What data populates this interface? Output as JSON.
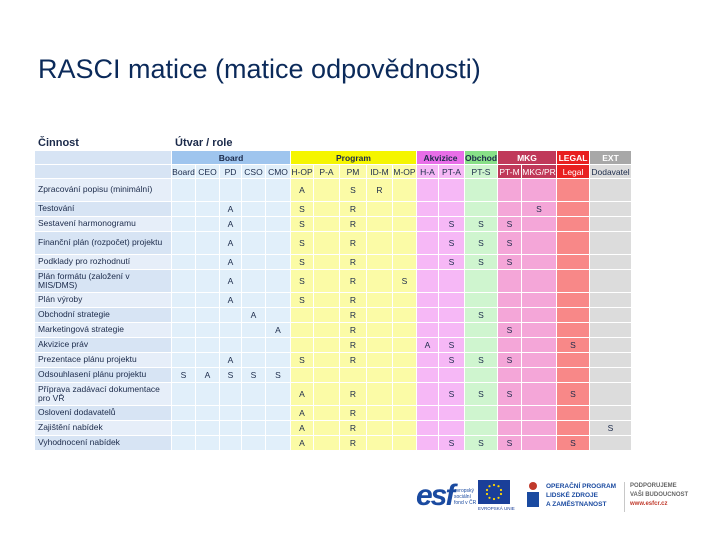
{
  "title": "RASCI matice (matice odpovědnosti)",
  "header": {
    "activity": "Činnost",
    "role": "Útvar / role"
  },
  "colors": {
    "board": "#9fc5ee",
    "boardLight": "#e1effa",
    "program": "#f5f500",
    "programLight": "#fbfba6",
    "akvizice": "#e86ee8",
    "akviziceLight": "#f6b8f6",
    "obchod": "#88e088",
    "obchodLight": "#cff5cf",
    "mkg": "#c0395a",
    "mkgLight": "#f4a6d8",
    "legal": "#e82020",
    "legalLight": "#f88888",
    "ext": "#a8a8a8",
    "extLight": "#dcdcdc",
    "rowA": "#e6eef9",
    "rowB": "#d7e4f4"
  },
  "groups": [
    {
      "label": "Board",
      "span": 5,
      "key": "board"
    },
    {
      "label": "Program",
      "span": 5,
      "key": "program"
    },
    {
      "label": "Akvizice",
      "span": 2,
      "key": "akvizice"
    },
    {
      "label": "Obchod",
      "span": 1,
      "key": "obchod"
    },
    {
      "label": "MKG",
      "span": 2,
      "key": "mkg"
    },
    {
      "label": "LEGAL",
      "span": 1,
      "key": "legal"
    },
    {
      "label": "EXT",
      "span": 1,
      "key": "ext"
    }
  ],
  "columns": [
    "Board",
    "CEO",
    "PD",
    "CSO",
    "CMO",
    "H-OP",
    "P-A",
    "PM",
    "ID-M",
    "M-OP",
    "H-A",
    "PT-A",
    "PT-S",
    "PT-M",
    "MKG/PR",
    "Legal",
    "Dodavatel"
  ],
  "rows": [
    {
      "activity": "Zpracování popisu (minimální)",
      "values": [
        "",
        "",
        "",
        "",
        "",
        "A",
        "",
        "S",
        "R",
        "",
        "",
        "",
        "",
        "",
        "",
        "",
        ""
      ]
    },
    {
      "activity": "Testování",
      "values": [
        "",
        "",
        "A",
        "",
        "",
        "S",
        "",
        "R",
        "",
        "",
        "",
        "",
        "",
        "",
        "S",
        "",
        ""
      ]
    },
    {
      "activity": "Sestavení harmonogramu",
      "values": [
        "",
        "",
        "A",
        "",
        "",
        "S",
        "",
        "R",
        "",
        "",
        "",
        "S",
        "S",
        "S",
        "",
        "",
        ""
      ]
    },
    {
      "activity": "Finanční plán (rozpočet) projektu",
      "values": [
        "",
        "",
        "A",
        "",
        "",
        "S",
        "",
        "R",
        "",
        "",
        "",
        "S",
        "S",
        "S",
        "",
        "",
        ""
      ]
    },
    {
      "activity": "Podklady pro rozhodnutí",
      "values": [
        "",
        "",
        "A",
        "",
        "",
        "S",
        "",
        "R",
        "",
        "",
        "",
        "S",
        "S",
        "S",
        "",
        "",
        ""
      ]
    },
    {
      "activity": "Plán formátu (založení v MIS/DMS)",
      "values": [
        "",
        "",
        "A",
        "",
        "",
        "S",
        "",
        "R",
        "",
        "S",
        "",
        "",
        "",
        "",
        "",
        "",
        ""
      ]
    },
    {
      "activity": "Plán výroby",
      "values": [
        "",
        "",
        "A",
        "",
        "",
        "S",
        "",
        "R",
        "",
        "",
        "",
        "",
        "",
        "",
        "",
        "",
        ""
      ]
    },
    {
      "activity": "Obchodní strategie",
      "values": [
        "",
        "",
        "",
        "A",
        "",
        "",
        "",
        "R",
        "",
        "",
        "",
        "",
        "S",
        "",
        "",
        "",
        ""
      ]
    },
    {
      "activity": "Marketingová strategie",
      "values": [
        "",
        "",
        "",
        "",
        "A",
        "",
        "",
        "R",
        "",
        "",
        "",
        "",
        "",
        "S",
        "",
        "",
        ""
      ]
    },
    {
      "activity": "Akvizice práv",
      "values": [
        "",
        "",
        "",
        "",
        "",
        "",
        "",
        "R",
        "",
        "",
        "A",
        "S",
        "",
        "",
        "",
        "S",
        ""
      ]
    },
    {
      "activity": "Prezentace plánu projektu",
      "values": [
        "",
        "",
        "A",
        "",
        "",
        "S",
        "",
        "R",
        "",
        "",
        "",
        "S",
        "S",
        "S",
        "",
        "",
        ""
      ]
    },
    {
      "activity": "Odsouhlasení plánu projektu",
      "values": [
        "S",
        "A",
        "S",
        "S",
        "S",
        "",
        "",
        "",
        "",
        "",
        "",
        "",
        "",
        "",
        "",
        "",
        ""
      ]
    },
    {
      "activity": "Příprava zadávací dokumentace pro VŘ",
      "values": [
        "",
        "",
        "",
        "",
        "",
        "A",
        "",
        "R",
        "",
        "",
        "",
        "S",
        "S",
        "S",
        "",
        "S",
        ""
      ]
    },
    {
      "activity": "Oslovení dodavatelů",
      "values": [
        "",
        "",
        "",
        "",
        "",
        "A",
        "",
        "R",
        "",
        "",
        "",
        "",
        "",
        "",
        "",
        "",
        ""
      ]
    },
    {
      "activity": "Zajištění nabídek",
      "values": [
        "",
        "",
        "",
        "",
        "",
        "A",
        "",
        "R",
        "",
        "",
        "",
        "",
        "",
        "",
        "",
        "",
        "S"
      ]
    },
    {
      "activity": "Vyhodnocení nabídek",
      "values": [
        "",
        "",
        "",
        "",
        "",
        "A",
        "",
        "R",
        "",
        "",
        "",
        "S",
        "S",
        "S",
        "",
        "S",
        ""
      ]
    }
  ],
  "footer": {
    "esf_letters": "esf",
    "esf_sub": "evropský sociální fond v ČR",
    "eu_label": "EVROPSKÁ UNIE",
    "op_line1": "OPERAČNÍ PROGRAM",
    "op_line2": "LIDSKÉ ZDROJE",
    "op_line3": "A ZAMĚSTNANOST",
    "sup_line1": "PODPORUJEME",
    "sup_line2": "VAŠI BUDOUCNOST",
    "sup_url": "www.esfcr.cz"
  }
}
